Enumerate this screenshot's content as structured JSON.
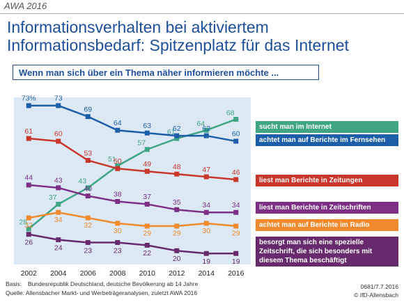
{
  "header": "AWA 2016",
  "chart_data": {
    "type": "line",
    "title": [
      "Informationsverhalten bei aktiviertem",
      "Informationsbedarf: Spitzenplatz für das Internet"
    ],
    "subtitle": "Wenn man sich über ein Thema näher informieren möchte ...",
    "x": [
      2002,
      2004,
      2006,
      2008,
      2010,
      2012,
      2014,
      2016
    ],
    "xlim": [
      2001,
      2017
    ],
    "xticks": [
      2002,
      2004,
      2006,
      2008,
      2010,
      2012,
      2014,
      2016
    ],
    "ylim": [
      15,
      76
    ],
    "series": [
      {
        "name": "sucht man im Internet",
        "color": "#3fa585",
        "values": [
          28,
          37,
          43,
          51,
          57,
          61,
          64,
          68
        ]
      },
      {
        "name": "achtet man auf Berichte im Fernsehen",
        "color": "#1d5ea8",
        "values": [
          73,
          73,
          69,
          64,
          63,
          62,
          62,
          60
        ],
        "value_labels": [
          "73%",
          "73",
          "69",
          "64",
          "63",
          "62",
          "62",
          "60"
        ]
      },
      {
        "name": "liest man Berichte in Zeitungen",
        "color": "#c9372c",
        "values": [
          61,
          60,
          53,
          50,
          49,
          48,
          47,
          46
        ]
      },
      {
        "name": "liest man Berichte in Zeitschriften",
        "color": "#7d2f85",
        "values": [
          44,
          43,
          40,
          38,
          37,
          35,
          34,
          34
        ]
      },
      {
        "name": "achtet man auf Berichte im Radio",
        "color": "#f08a2c",
        "values": [
          32,
          34,
          32,
          30,
          29,
          29,
          30,
          29
        ]
      },
      {
        "name": "besorgt man sich eine spezielle Zeitschrift, die sich besonders mit diesem Thema beschäftigt",
        "color": "#672a6c",
        "values": [
          26,
          24,
          23,
          23,
          22,
          20,
          19,
          19
        ]
      }
    ]
  },
  "footer": {
    "basis_label": "Basis:",
    "basis": "Bundesrepublik Deutschland, deutsche Bevölkerung ab 14 Jahre",
    "source": "Quelle: Allensbacher Markt- und Werbeträgeranalysen, zuletzt AWA 2016",
    "code": "0681/7.7.2016",
    "copyright": "© IfD-Allensbach"
  }
}
